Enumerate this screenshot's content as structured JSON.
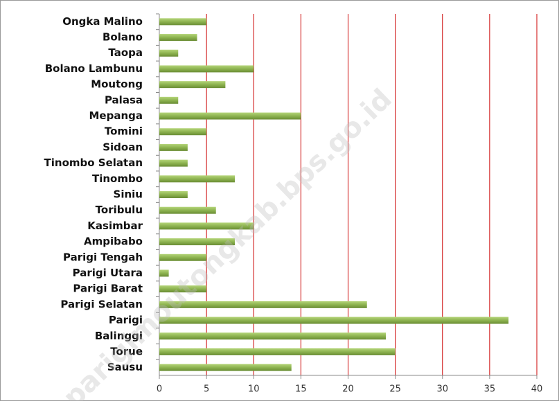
{
  "chart_data": {
    "type": "barh",
    "categories": [
      "Ongka Malino",
      "Bolano",
      "Taopa",
      "Bolano Lambunu",
      "Moutong",
      "Palasa",
      "Mepanga",
      "Tomini",
      "Sidoan",
      "Tinombo Selatan",
      "Tinombo",
      "Siniu",
      "Toribulu",
      "Kasimbar",
      "Ampibabo",
      "Parigi Tengah",
      "Parigi Utara",
      "Parigi Barat",
      "Parigi Selatan",
      "Parigi",
      "Balinggi",
      "Torue",
      "Sausu"
    ],
    "values": [
      5,
      4,
      2,
      10,
      7,
      2,
      15,
      5,
      3,
      3,
      8,
      3,
      6,
      10,
      8,
      5,
      1,
      5,
      22,
      37,
      24,
      25,
      14
    ],
    "color": "#8db350",
    "grid_color": "#cc0000",
    "xlim": [
      0,
      40
    ],
    "xticks": [
      0,
      5,
      10,
      15,
      20,
      25,
      30,
      35,
      40
    ],
    "grid": true,
    "watermark": "parigimoutongkab.bps.go.id"
  }
}
